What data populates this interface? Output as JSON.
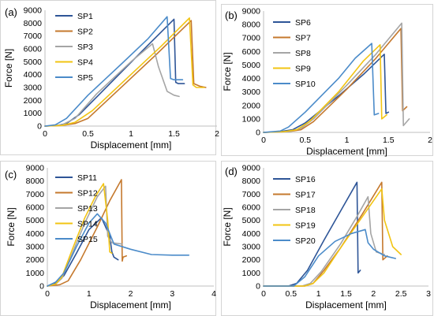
{
  "chart_data": [
    {
      "type": "line",
      "panel": "(a)",
      "xlabel": "Displacement [mm]",
      "ylabel": "Force [N]",
      "xlim": [
        0,
        2
      ],
      "ylim": [
        0,
        9000
      ],
      "xticks": [
        "0",
        "0.5",
        "1",
        "1.5",
        "2"
      ],
      "yticks": [
        "0",
        "1000",
        "2000",
        "3000",
        "4000",
        "5000",
        "6000",
        "7000",
        "8000",
        "9000"
      ],
      "grid": false,
      "legend_position": "top-left",
      "series": [
        {
          "name": "SP1",
          "color": "#2E5597",
          "x": [
            0,
            0.15,
            0.25,
            0.4,
            0.8,
            1.2,
            1.5,
            1.52,
            1.55,
            1.62
          ],
          "y": [
            0,
            50,
            200,
            900,
            3600,
            6300,
            8300,
            3400,
            3300,
            3300
          ]
        },
        {
          "name": "SP2",
          "color": "#C5792E",
          "x": [
            0,
            0.2,
            0.35,
            0.5,
            0.9,
            1.3,
            1.7,
            1.73,
            1.8,
            1.87
          ],
          "y": [
            0,
            50,
            200,
            600,
            3100,
            5600,
            8200,
            3300,
            3100,
            3000
          ]
        },
        {
          "name": "SP3",
          "color": "#A5A5A5",
          "x": [
            0,
            0.2,
            0.35,
            0.6,
            1.0,
            1.25,
            1.32,
            1.42,
            1.5,
            1.56
          ],
          "y": [
            0,
            100,
            600,
            2500,
            5000,
            6400,
            4600,
            2700,
            2400,
            2300
          ]
        },
        {
          "name": "SP4",
          "color": "#F2C413",
          "x": [
            0,
            0.2,
            0.35,
            0.55,
            0.95,
            1.35,
            1.68,
            1.72,
            1.76,
            1.85
          ],
          "y": [
            0,
            50,
            300,
            1200,
            3700,
            6200,
            8400,
            3200,
            3000,
            3000
          ]
        },
        {
          "name": "SP5",
          "color": "#4B8BC9",
          "x": [
            0,
            0.12,
            0.25,
            0.5,
            0.9,
            1.2,
            1.42,
            1.46,
            1.5,
            1.6
          ],
          "y": [
            0,
            100,
            600,
            2400,
            4900,
            6800,
            8500,
            3700,
            3600,
            3600
          ]
        }
      ]
    },
    {
      "type": "line",
      "panel": "(b)",
      "xlabel": "Displacement [mm]",
      "ylabel": "Force [N]",
      "xlim": [
        0,
        2
      ],
      "ylim": [
        0,
        9000
      ],
      "xticks": [
        "0",
        "0.5",
        "1",
        "1.5",
        "2"
      ],
      "yticks": [
        "0",
        "1000",
        "2000",
        "3000",
        "4000",
        "5000",
        "6000",
        "7000",
        "8000",
        "9000"
      ],
      "grid": false,
      "legend_position": "top-left",
      "series": [
        {
          "name": "SP6",
          "color": "#2E5597",
          "x": [
            0,
            0.2,
            0.35,
            0.5,
            0.9,
            1.2,
            1.45,
            1.47,
            1.5
          ],
          "y": [
            0,
            50,
            200,
            700,
            2700,
            4300,
            5800,
            1400,
            1500
          ]
        },
        {
          "name": "SP7",
          "color": "#C5792E",
          "x": [
            0,
            0.3,
            0.45,
            0.6,
            1.0,
            1.35,
            1.65,
            1.67,
            1.72
          ],
          "y": [
            0,
            50,
            200,
            800,
            3200,
            5500,
            7700,
            1600,
            1900
          ]
        },
        {
          "name": "SP8",
          "color": "#A5A5A5",
          "x": [
            0,
            0.3,
            0.45,
            0.6,
            1.0,
            1.35,
            1.66,
            1.68,
            1.75
          ],
          "y": [
            0,
            50,
            300,
            1000,
            3500,
            5800,
            8100,
            500,
            1000
          ]
        },
        {
          "name": "SP9",
          "color": "#F2C413",
          "x": [
            0,
            0.25,
            0.4,
            0.55,
            0.9,
            1.2,
            1.4,
            1.42,
            1.48
          ],
          "y": [
            0,
            50,
            200,
            800,
            3000,
            5300,
            6500,
            1000,
            1300
          ]
        },
        {
          "name": "SP10",
          "color": "#4B8BC9",
          "x": [
            0,
            0.2,
            0.3,
            0.5,
            0.9,
            1.1,
            1.3,
            1.33,
            1.38
          ],
          "y": [
            0,
            100,
            400,
            1500,
            4000,
            5500,
            6600,
            1300,
            1400
          ]
        }
      ]
    },
    {
      "type": "line",
      "panel": "(c)",
      "xlabel": "Displacement [mm]",
      "ylabel": "Force [N]",
      "xlim": [
        0,
        4
      ],
      "ylim": [
        0,
        9000
      ],
      "xticks": [
        "0",
        "1",
        "2",
        "3",
        "4"
      ],
      "yticks": [
        "0",
        "1000",
        "2000",
        "3000",
        "4000",
        "5000",
        "6000",
        "7000",
        "8000",
        "9000"
      ],
      "grid": false,
      "legend_position": "top-left",
      "series": [
        {
          "name": "SP11",
          "color": "#2E5597",
          "x": [
            0,
            0.2,
            0.4,
            0.7,
            1.0,
            1.3,
            1.5,
            1.55,
            1.6,
            1.7
          ],
          "y": [
            0,
            200,
            800,
            2500,
            4300,
            5200,
            3800,
            2600,
            2200,
            2000
          ]
        },
        {
          "name": "SP12",
          "color": "#C5792E",
          "x": [
            0,
            0.3,
            0.5,
            0.8,
            1.2,
            1.5,
            1.78,
            1.8,
            1.82,
            1.9
          ],
          "y": [
            0,
            100,
            400,
            2000,
            4500,
            6500,
            8100,
            1900,
            2200,
            2300
          ]
        },
        {
          "name": "SP13",
          "color": "#A5A5A5",
          "x": [
            0,
            0.2,
            0.35,
            0.6,
            0.9,
            1.2,
            1.4,
            1.45,
            1.55,
            1.8
          ],
          "y": [
            0,
            150,
            600,
            2500,
            4800,
            6800,
            7600,
            3800,
            3300,
            3200
          ]
        },
        {
          "name": "SP14",
          "color": "#F2C413",
          "x": [
            0,
            0.2,
            0.35,
            0.6,
            0.9,
            1.15,
            1.35,
            1.45,
            1.5,
            1.55
          ],
          "y": [
            0,
            150,
            700,
            2800,
            5200,
            6800,
            7800,
            5000,
            2600,
            2500
          ]
        },
        {
          "name": "SP15",
          "color": "#4B8BC9",
          "x": [
            0,
            0.2,
            0.4,
            0.7,
            1.0,
            1.2,
            1.4,
            1.6,
            2.0,
            2.5,
            3.0,
            3.4
          ],
          "y": [
            0,
            300,
            1000,
            3000,
            4800,
            5500,
            4800,
            3200,
            2800,
            2400,
            2350,
            2350
          ]
        }
      ]
    },
    {
      "type": "line",
      "panel": "(d)",
      "xlabel": "Displacement [mm]",
      "ylabel": "Force [N]",
      "xlim": [
        0,
        3
      ],
      "ylim": [
        0,
        9000
      ],
      "xticks": [
        "0",
        "0.5",
        "1",
        "1.5",
        "2",
        "2.5",
        "3"
      ],
      "yticks": [
        "0",
        "1000",
        "2000",
        "3000",
        "4000",
        "5000",
        "6000",
        "7000",
        "8000",
        "9000"
      ],
      "grid": false,
      "legend_position": "top-left",
      "series": [
        {
          "name": "SP16",
          "color": "#2E5597",
          "x": [
            0,
            0.45,
            0.6,
            0.8,
            1.1,
            1.4,
            1.7,
            1.72,
            1.76
          ],
          "y": [
            0,
            0,
            200,
            1200,
            3500,
            5700,
            7900,
            1000,
            1200
          ]
        },
        {
          "name": "SP17",
          "color": "#C5792E",
          "x": [
            0,
            0.75,
            0.9,
            1.1,
            1.4,
            1.8,
            2.15,
            2.17,
            2.25
          ],
          "y": [
            0,
            0,
            200,
            1200,
            2900,
            5500,
            7900,
            2000,
            2300
          ]
        },
        {
          "name": "SP18",
          "color": "#A5A5A5",
          "x": [
            0,
            0.7,
            0.85,
            1.05,
            1.4,
            1.7,
            1.9,
            1.95,
            2.05,
            2.2
          ],
          "y": [
            0,
            0,
            200,
            1100,
            3200,
            5300,
            6800,
            4000,
            2600,
            2400
          ]
        },
        {
          "name": "SP19",
          "color": "#F2C413",
          "x": [
            0,
            0.75,
            0.9,
            1.1,
            1.4,
            1.8,
            2.15,
            2.2,
            2.35,
            2.5
          ],
          "y": [
            0,
            0,
            200,
            1000,
            2900,
            5300,
            7400,
            5000,
            3000,
            2400
          ]
        },
        {
          "name": "SP20",
          "color": "#4B8BC9",
          "x": [
            0,
            0.55,
            0.75,
            1.0,
            1.3,
            1.6,
            1.85,
            1.9,
            2.0,
            2.2,
            2.4
          ],
          "y": [
            0,
            0,
            700,
            2300,
            3400,
            4000,
            4300,
            3300,
            2800,
            2300,
            2100
          ]
        }
      ]
    }
  ]
}
